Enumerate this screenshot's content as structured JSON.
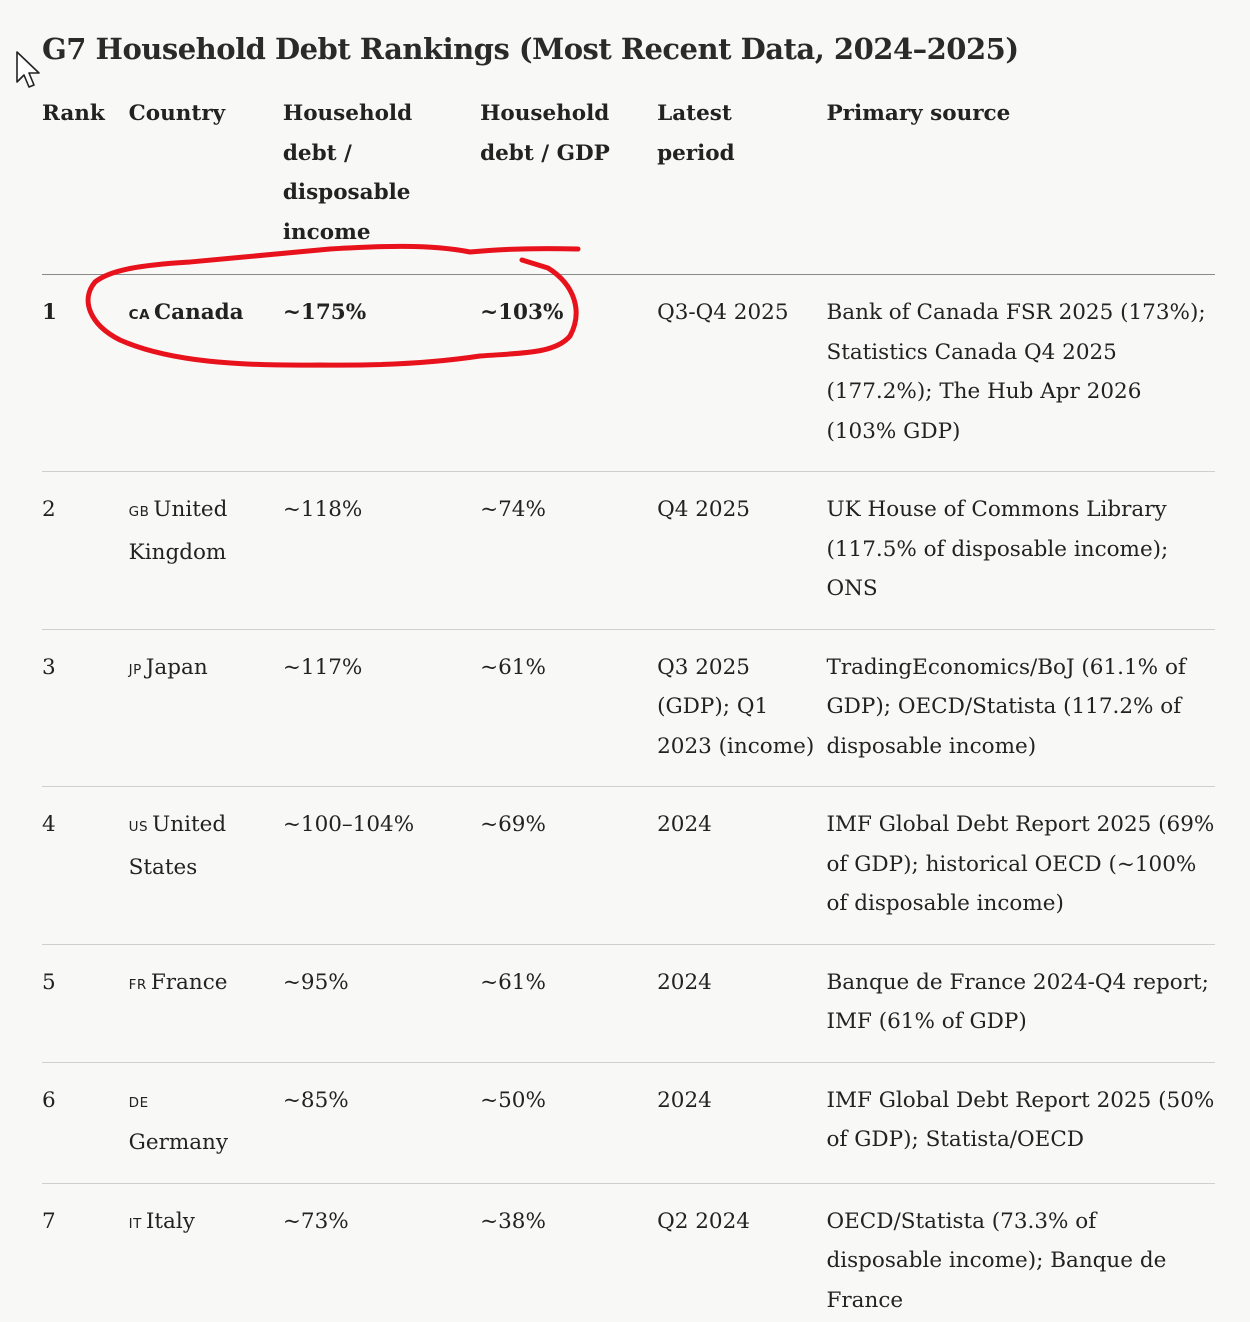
{
  "title": "G7 Household Debt Rankings (Most Recent Data, 2024–2025)",
  "columns": {
    "rank": "Rank",
    "country": "Country",
    "dispo": "Household debt / disposable income",
    "gdp": "Household debt / GDP",
    "period": "Latest period",
    "source": "Primary source"
  },
  "rows": [
    {
      "rank": "1",
      "code": "CA",
      "country": "Canada",
      "dispo": "~175%",
      "gdp": "~103%",
      "period": "Q3-Q4 2025",
      "source": "Bank of Canada FSR 2025 (173%); Statistics Canada Q4 2025 (177.2%); The Hub Apr 2026 (103% GDP)"
    },
    {
      "rank": "2",
      "code": "GB",
      "country": "United Kingdom",
      "dispo": "~118%",
      "gdp": "~74%",
      "period": "Q4 2025",
      "source": "UK House of Commons Library (117.5% of disposable income); ONS"
    },
    {
      "rank": "3",
      "code": "JP",
      "country": "Japan",
      "dispo": "~117%",
      "gdp": "~61%",
      "period": "Q3 2025 (GDP); Q1 2023 (income)",
      "source": "TradingEconomics/BoJ (61.1% of GDP); OECD/Statista (117.2% of disposable income)"
    },
    {
      "rank": "4",
      "code": "US",
      "country": "United States",
      "dispo": "~100–104%",
      "gdp": "~69%",
      "period": "2024",
      "source": "IMF Global Debt Report 2025 (69% of GDP); historical OECD (~100% of disposable income)"
    },
    {
      "rank": "5",
      "code": "FR",
      "country": "France",
      "dispo": "~95%",
      "gdp": "~61%",
      "period": "2024",
      "source": "Banque de France 2024-Q4 report; IMF (61% of GDP)"
    },
    {
      "rank": "6",
      "code": "DE",
      "country": "Germany",
      "dispo": "~85%",
      "gdp": "~50%",
      "period": "2024",
      "source": "IMF Global Debt Report 2025 (50% of GDP); Statista/OECD"
    },
    {
      "rank": "7",
      "code": "IT",
      "country": "Italy",
      "dispo": "~73%",
      "gdp": "~38%",
      "period": "Q2 2024",
      "source": "OECD/Statista (73.3% of disposable income); Banque de France"
    }
  ],
  "colors": {
    "annotation": "#e8121c",
    "background": "#f8f8f6"
  },
  "icons": {
    "cursor": "mouse-pointer-icon"
  }
}
